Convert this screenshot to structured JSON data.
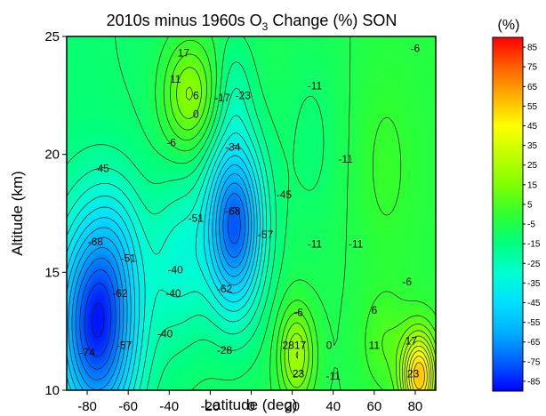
{
  "chart_data": {
    "type": "heatmap",
    "title": {
      "prefix": "2010s minus 1960s O",
      "subscript": "3",
      "suffix": " Change (%)   SON"
    },
    "xlabel": "Latitude (deg)",
    "ylabel": "Altitude (km)",
    "xlim": [
      -90,
      90
    ],
    "ylim": [
      10,
      25
    ],
    "xticks": [
      -80,
      -60,
      -40,
      -20,
      0,
      20,
      40,
      60,
      80
    ],
    "yticks": [
      10,
      15,
      20,
      25
    ],
    "colorbar": {
      "title": "(%)",
      "min": -90,
      "max": 90,
      "ticks": [
        85,
        75,
        65,
        55,
        45,
        35,
        25,
        15,
        5,
        -5,
        -15,
        -25,
        -35,
        -45,
        -55,
        -65,
        -75,
        -85
      ],
      "colors": [
        "#0000ff",
        "#0060ff",
        "#00b0ff",
        "#00e0ff",
        "#00ffd0",
        "#00ff80",
        "#30ff30",
        "#80ff00",
        "#c0ff00",
        "#ffff00",
        "#ffb000",
        "#ff6000",
        "#ff0000"
      ]
    },
    "contour_interval": 5.68,
    "grid": false,
    "features": [
      {
        "lat": -75,
        "alt": 12.8,
        "amp": -74,
        "sx": 14,
        "sy": 3.2
      },
      {
        "lat": -65,
        "alt": 16.5,
        "amp": -10,
        "sx": 10,
        "sy": 2.0
      },
      {
        "lat": -8,
        "alt": 17.0,
        "amp": -68,
        "sx": 10,
        "sy": 2.6
      },
      {
        "lat": -35,
        "alt": 15.5,
        "amp": -20,
        "sx": 10,
        "sy": 2.5
      },
      {
        "lat": -30,
        "alt": 22.5,
        "amp": 28,
        "sx": 9,
        "sy": 1.6
      },
      {
        "lat": -8,
        "alt": 22.8,
        "amp": -10,
        "sx": 6,
        "sy": 1.5
      },
      {
        "lat": 22,
        "alt": 11.5,
        "amp": 30,
        "sx": 6,
        "sy": 1.4
      },
      {
        "lat": 30,
        "alt": 20.5,
        "amp": -6,
        "sx": 10,
        "sy": 3.0
      },
      {
        "lat": 65,
        "alt": 19.5,
        "amp": 6,
        "sx": 10,
        "sy": 3.0
      },
      {
        "lat": 82,
        "alt": 10.6,
        "amp": 60,
        "sx": 6,
        "sy": 1.3
      },
      {
        "lat": 65,
        "alt": 12.0,
        "amp": 10,
        "sx": 8,
        "sy": 1.5
      }
    ],
    "base": {
      "value": -8,
      "lat_slope": 0.05
    },
    "contour_labels": [
      {
        "text": "17",
        "lat": -33,
        "alt": 24.3
      },
      {
        "text": "11",
        "lat": -37,
        "alt": 23.2
      },
      {
        "text": "6",
        "lat": -27,
        "alt": 22.5
      },
      {
        "text": "0",
        "lat": -27,
        "alt": 21.7
      },
      {
        "text": "-17",
        "lat": -14,
        "alt": 22.4
      },
      {
        "text": "-23",
        "lat": -4,
        "alt": 22.5
      },
      {
        "text": "-11",
        "lat": 31,
        "alt": 22.9
      },
      {
        "text": "-6",
        "lat": 80,
        "alt": 24.5
      },
      {
        "text": "-6",
        "lat": -39,
        "alt": 20.5
      },
      {
        "text": "-34",
        "lat": -9,
        "alt": 20.3
      },
      {
        "text": "-45",
        "lat": -73,
        "alt": 19.4
      },
      {
        "text": "-11",
        "lat": 46,
        "alt": 19.8
      },
      {
        "text": "-45",
        "lat": 16,
        "alt": 18.3
      },
      {
        "text": "-51",
        "lat": -27,
        "alt": 17.3
      },
      {
        "text": "-68",
        "lat": -9,
        "alt": 17.6
      },
      {
        "text": "-68",
        "lat": -76,
        "alt": 16.3
      },
      {
        "text": "-51",
        "lat": -60,
        "alt": 15.6
      },
      {
        "text": "-57",
        "lat": 7,
        "alt": 16.6
      },
      {
        "text": "-11",
        "lat": 31,
        "alt": 16.2
      },
      {
        "text": "-11",
        "lat": 51,
        "alt": 16.2
      },
      {
        "text": "-40",
        "lat": -37,
        "alt": 15.1
      },
      {
        "text": "-6",
        "lat": 76,
        "alt": 14.6
      },
      {
        "text": "-62",
        "lat": -64,
        "alt": 14.1
      },
      {
        "text": "-40",
        "lat": -38,
        "alt": 14.1
      },
      {
        "text": "-62",
        "lat": -13,
        "alt": 14.3
      },
      {
        "text": "-6",
        "lat": 23,
        "alt": 13.3
      },
      {
        "text": "6",
        "lat": 60,
        "alt": 13.4
      },
      {
        "text": "-40",
        "lat": -42,
        "alt": 12.4
      },
      {
        "text": "-57",
        "lat": -62,
        "alt": 11.9
      },
      {
        "text": "-28",
        "lat": -13,
        "alt": 11.7
      },
      {
        "text": "2817",
        "lat": 21,
        "alt": 11.9
      },
      {
        "text": "0",
        "lat": 38,
        "alt": 11.9
      },
      {
        "text": "11",
        "lat": 60,
        "alt": 11.9
      },
      {
        "text": "17",
        "lat": 78,
        "alt": 12.1
      },
      {
        "text": "-74",
        "lat": -80,
        "alt": 11.6
      },
      {
        "text": "23",
        "lat": 23,
        "alt": 10.7
      },
      {
        "text": "-11",
        "lat": 40,
        "alt": 10.6
      },
      {
        "text": "23",
        "lat": 79,
        "alt": 10.7
      }
    ]
  }
}
